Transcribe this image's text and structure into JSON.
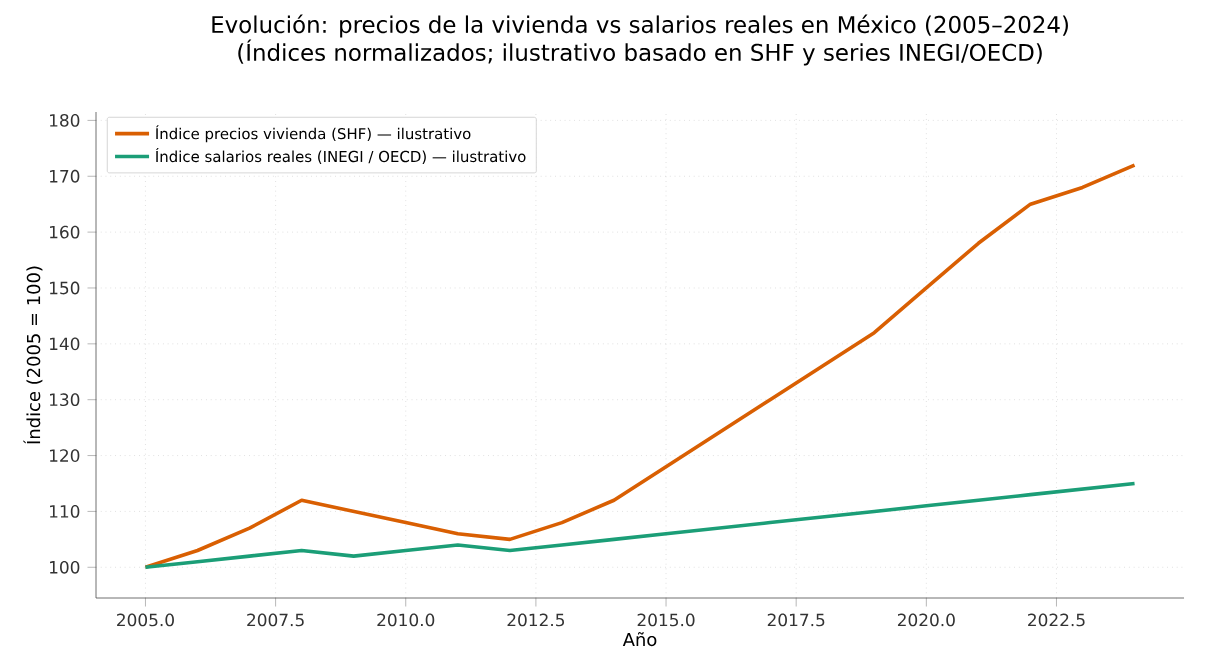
{
  "chart_data": {
    "type": "line",
    "title": "Evolución: precios de la vivienda vs salarios reales en México (2005–2024)",
    "subtitle": "(Índices normalizados; ilustrativo basado en SHF y series INEGI/OECD)",
    "xlabel": "Año",
    "ylabel": "Índice (2005 = 100)",
    "x": [
      2005,
      2006,
      2007,
      2008,
      2009,
      2010,
      2011,
      2012,
      2013,
      2014,
      2015,
      2016,
      2017,
      2018,
      2019,
      2020,
      2021,
      2022,
      2023,
      2024
    ],
    "series": [
      {
        "name": "Índice precios vivienda (SHF) — ilustrativo",
        "color": "#d95f02",
        "values": [
          100,
          103,
          107,
          112,
          110,
          108,
          106,
          105,
          108,
          112,
          118,
          124,
          130,
          136,
          142,
          150,
          158,
          165,
          168,
          172
        ]
      },
      {
        "name": "Índice salarios reales (INEGI / OECD) — ilustrativo",
        "color": "#1b9e77",
        "values": [
          100,
          101,
          102,
          103,
          102,
          103,
          104,
          103,
          104,
          105,
          106,
          107,
          108,
          109,
          110,
          111,
          112,
          113,
          114,
          115
        ]
      }
    ],
    "xlim": [
      2004.05,
      2024.95
    ],
    "ylim": [
      94.5,
      181.5
    ],
    "xticks": [
      {
        "value": 2005,
        "label": "2005.0"
      },
      {
        "value": 2007.5,
        "label": "2007.5"
      },
      {
        "value": 2010,
        "label": "2010.0"
      },
      {
        "value": 2012.5,
        "label": "2012.5"
      },
      {
        "value": 2015,
        "label": "2015.0"
      },
      {
        "value": 2017.5,
        "label": "2017.5"
      },
      {
        "value": 2020,
        "label": "2020.0"
      },
      {
        "value": 2022.5,
        "label": "2022.5"
      }
    ],
    "yticks": [
      100,
      110,
      120,
      130,
      140,
      150,
      160,
      170,
      180
    ],
    "grid": true,
    "legend": "top left",
    "marker": "none",
    "line_style": "solid"
  }
}
